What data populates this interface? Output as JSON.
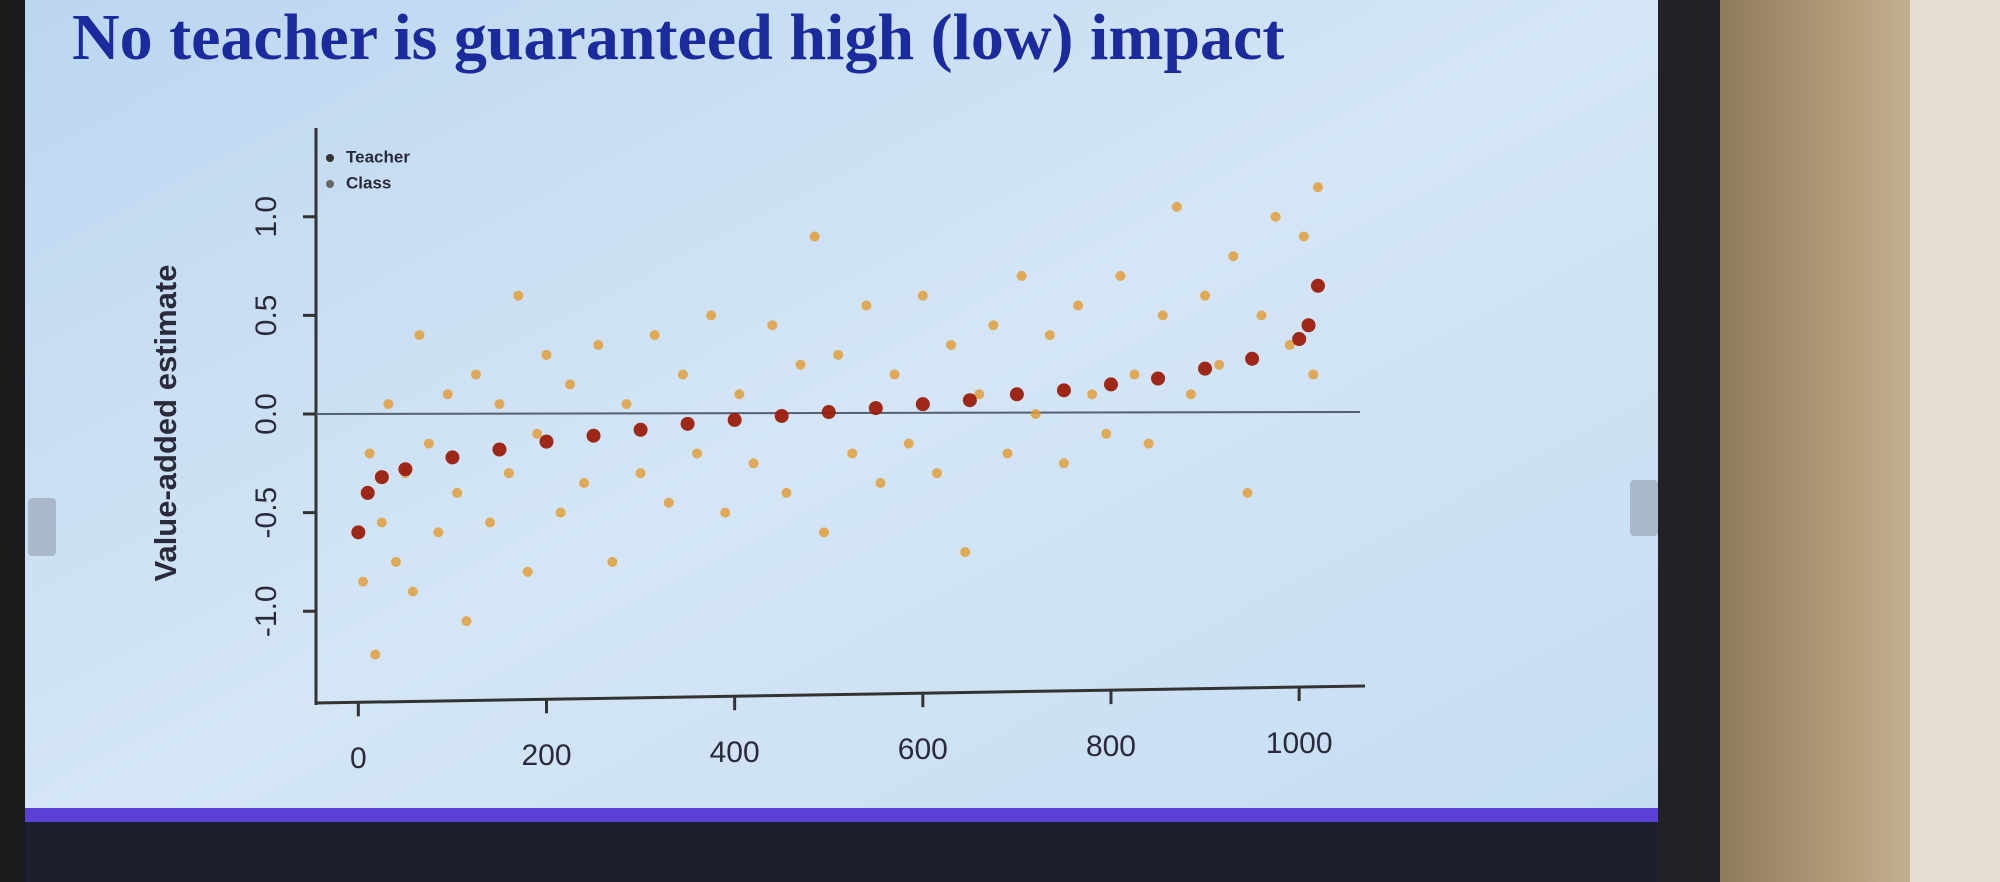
{
  "chart_data": {
    "type": "scatter",
    "title": "No teacher is guaranteed high (low) impact",
    "y_label": "Value-added estimate",
    "xlim": [
      -45,
      1070
    ],
    "ylim": [
      -1.45,
      1.45
    ],
    "xticks": [
      0,
      200,
      400,
      600,
      800,
      1000
    ],
    "yticks": [
      {
        "value": -1,
        "label": "-1.0"
      },
      {
        "value": -0.5,
        "label": "-0.5"
      },
      {
        "value": 0,
        "label": "0.0"
      },
      {
        "value": 0.5,
        "label": "0.5"
      },
      {
        "value": 1,
        "label": "1.0"
      }
    ],
    "reference_line": 0,
    "legend": "upper left",
    "series": [
      {
        "name": "Teacher",
        "color": "#9b1c0c",
        "x": [
          0,
          10,
          25,
          50,
          100,
          150,
          200,
          250,
          300,
          350,
          400,
          450,
          500,
          550,
          600,
          650,
          700,
          750,
          800,
          850,
          900,
          950,
          1000,
          1010,
          1020
        ],
        "values": [
          -0.6,
          -0.4,
          -0.32,
          -0.28,
          -0.22,
          -0.18,
          -0.14,
          -0.11,
          -0.08,
          -0.05,
          -0.03,
          -0.01,
          0.01,
          0.03,
          0.05,
          0.07,
          0.1,
          0.12,
          0.15,
          0.18,
          0.23,
          0.28,
          0.38,
          0.45,
          0.65
        ]
      },
      {
        "name": "Class",
        "color": "#e39a2d",
        "x": [
          5,
          12,
          18,
          25,
          32,
          40,
          50,
          58,
          65,
          75,
          85,
          95,
          105,
          115,
          125,
          140,
          150,
          160,
          170,
          180,
          190,
          200,
          215,
          225,
          240,
          255,
          270,
          285,
          300,
          315,
          330,
          345,
          360,
          375,
          390,
          405,
          420,
          440,
          455,
          470,
          485,
          495,
          510,
          525,
          540,
          555,
          570,
          585,
          600,
          615,
          630,
          645,
          660,
          675,
          690,
          705,
          720,
          735,
          750,
          765,
          780,
          795,
          810,
          825,
          840,
          855,
          870,
          885,
          900,
          915,
          930,
          945,
          960,
          975,
          990,
          1005,
          1015,
          1020
        ],
        "values": [
          -0.85,
          -0.2,
          -1.22,
          -0.55,
          0.05,
          -0.75,
          -0.3,
          -0.9,
          0.4,
          -0.15,
          -0.6,
          0.1,
          -0.4,
          -1.05,
          0.2,
          -0.55,
          0.05,
          -0.3,
          0.6,
          -0.8,
          -0.1,
          0.3,
          -0.5,
          0.15,
          -0.35,
          0.35,
          -0.75,
          0.05,
          -0.3,
          0.4,
          -0.45,
          0.2,
          -0.2,
          0.5,
          -0.5,
          0.1,
          -0.25,
          0.45,
          -0.4,
          0.25,
          0.9,
          -0.6,
          0.3,
          -0.2,
          0.55,
          -0.35,
          0.2,
          -0.15,
          0.6,
          -0.3,
          0.35,
          -0.7,
          0.1,
          0.45,
          -0.2,
          0.7,
          0.0,
          0.4,
          -0.25,
          0.55,
          0.1,
          -0.1,
          0.7,
          0.2,
          -0.15,
          0.5,
          1.05,
          0.1,
          0.6,
          0.25,
          0.8,
          -0.4,
          0.5,
          1.0,
          0.35,
          0.9,
          0.2,
          1.15
        ]
      }
    ]
  }
}
